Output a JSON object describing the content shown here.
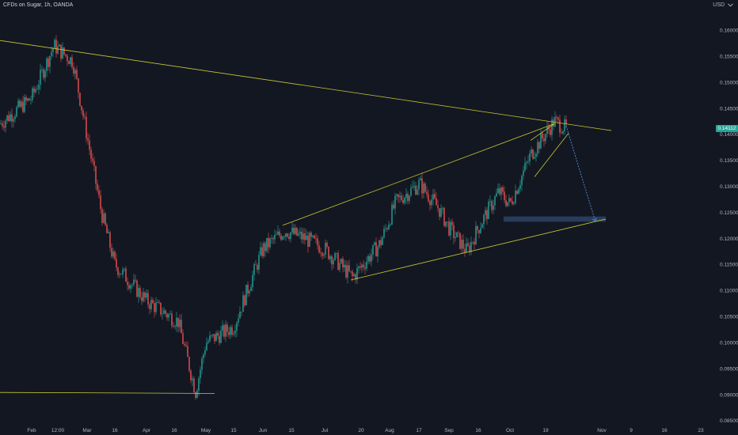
{
  "header": {
    "symbol": "CFDs on Sugar, 1h, OANDA",
    "currency": "USD"
  },
  "last_price": {
    "value": "0.14112",
    "color": "#26a69a"
  },
  "colors": {
    "background": "#131722",
    "up": "#26a69a",
    "down": "#ef5350",
    "trendline": "#c8c832",
    "projection": "#4a90d9",
    "target_zone": "#2a4466",
    "axis_text": "#b2b5be"
  },
  "icons": {
    "scale_menu": "chevron-down-icon"
  },
  "chart_data": {
    "type": "candlestick",
    "title": "CFDs on Sugar, 1h, OANDA",
    "xlabel": "",
    "ylabel": "",
    "ylim": [
      0.0845,
      0.1635
    ],
    "y_ticks": [
      "0.16000",
      "0.15500",
      "0.15000",
      "0.14500",
      "0.14000",
      "0.13500",
      "0.13000",
      "0.12500",
      "0.12000",
      "0.11500",
      "0.11000",
      "0.10500",
      "0.10000",
      "0.09500",
      "0.09000",
      "0.08500"
    ],
    "x_ticks": [
      "Feb",
      "12:00",
      "Mar",
      "16",
      "Apr",
      "16",
      "May",
      "15",
      "Jun",
      "15",
      "Jul",
      "20",
      "Aug",
      "17",
      "Sep",
      "16",
      "Oct",
      "19",
      "Nov",
      "9",
      "16",
      "23"
    ],
    "grid": false,
    "price_path": [
      [
        "Jan",
        0.142
      ],
      [
        "Feb",
        0.147
      ],
      [
        "12:00",
        0.157
      ],
      [
        "Feb",
        0.154
      ],
      [
        "Mar",
        0.138
      ],
      [
        "Mar",
        0.125
      ],
      [
        "16",
        0.115
      ],
      [
        "Apr",
        0.108
      ],
      [
        "16",
        0.104
      ],
      [
        "May",
        0.0905
      ],
      [
        "May",
        0.1
      ],
      [
        "15",
        0.103
      ],
      [
        "Jun",
        0.118
      ],
      [
        "Jun",
        0.1215
      ],
      [
        "15",
        0.12
      ],
      [
        "Jul",
        0.118
      ],
      [
        "Jul",
        0.1125
      ],
      [
        "20",
        0.119
      ],
      [
        "Aug",
        0.127
      ],
      [
        "17",
        0.1305
      ],
      [
        "17",
        0.1255
      ],
      [
        "Sep",
        0.122
      ],
      [
        "Sep",
        0.1175
      ],
      [
        "16",
        0.122
      ],
      [
        "Oct",
        0.129
      ],
      [
        "Oct",
        0.1265
      ],
      [
        "19",
        0.136
      ],
      [
        "19",
        0.1425
      ],
      [
        "19",
        0.1411
      ]
    ],
    "drawings": [
      {
        "name": "long-term-descending-resistance",
        "from": [
          "Jan",
          0.158
        ],
        "to": [
          "Nov",
          0.1407
        ]
      },
      {
        "name": "channel-upper-line",
        "from": [
          "Jun",
          0.1225
        ],
        "to": [
          "19",
          0.142
        ]
      },
      {
        "name": "channel-lower-line",
        "from": [
          "Jul",
          0.112
        ],
        "to": [
          "Nov",
          0.1237
        ]
      },
      {
        "name": "support-line",
        "from": [
          "Jan",
          0.0904
        ],
        "to": [
          "May",
          0.0902
        ]
      },
      {
        "name": "rising-wedge-upper",
        "from": [
          "19",
          0.1388
        ],
        "to": [
          "19",
          0.142
        ]
      },
      {
        "name": "rising-wedge-lower",
        "from": [
          "19",
          0.1318
        ],
        "to": [
          "19",
          0.1402
        ]
      },
      {
        "name": "projection-arrow",
        "from": [
          "19",
          0.1416
        ],
        "to": [
          "Nov",
          0.1232
        ]
      }
    ],
    "target_zone": {
      "x_from": "Oct",
      "x_to": "Nov",
      "y_from": 0.1232,
      "y_to": 0.1242
    }
  }
}
